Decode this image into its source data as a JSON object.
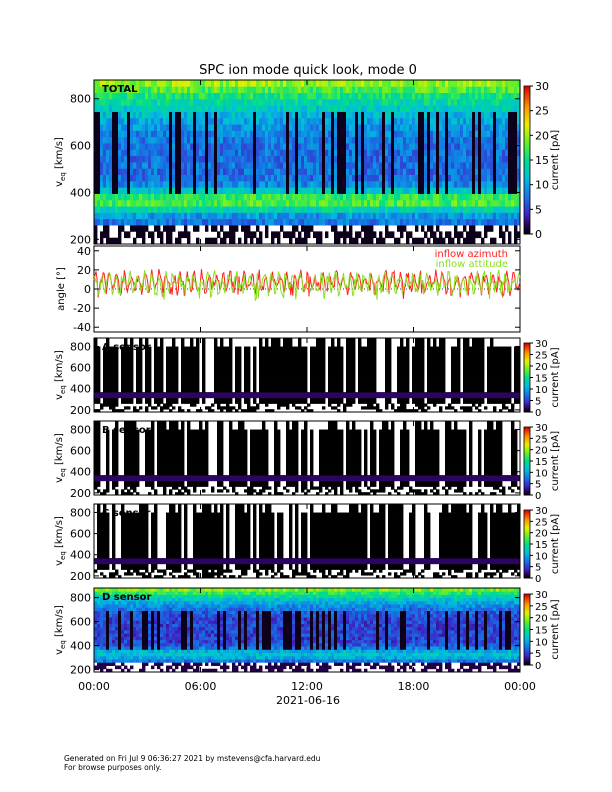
{
  "chart_data": {
    "type": "heatmap",
    "title": "SPC ion mode quick look, mode 0",
    "xlabel": "2021-06-16",
    "x_ticks": [
      "00:00",
      "06:00",
      "12:00",
      "18:00",
      "00:00"
    ],
    "x_range_hours": [
      0,
      24
    ],
    "panels": [
      {
        "kind": "spectrogram",
        "label": "TOTAL",
        "ylabel_main": "v",
        "ylabel_sub": "eq",
        "ylabel_unit": "[km/s]",
        "y_ticks": [
          200,
          400,
          600,
          800
        ],
        "ylim": [
          180,
          880
        ],
        "colorbar_label": "current [pA]",
        "colorbar_ticks": [
          0,
          5,
          10,
          15,
          20,
          25,
          30
        ],
        "colorbar_range": [
          0,
          30
        ],
        "bulk_speed_approx": 330,
        "variant": "full"
      },
      {
        "kind": "line",
        "ylabel": "angle [°]",
        "y_ticks": [
          -40,
          -20,
          0,
          20,
          40
        ],
        "ylim": [
          -45,
          45
        ],
        "series": [
          {
            "name": "inflow azimuth",
            "color": "#ff2020",
            "typical_range": [
              0,
              20
            ]
          },
          {
            "name": "inflow attitude",
            "color": "#88e020",
            "typical_range": [
              0,
              18
            ]
          }
        ]
      },
      {
        "kind": "spectrogram",
        "label": "A sensor",
        "ylabel_main": "v",
        "ylabel_sub": "eq",
        "ylabel_unit": "[km/s]",
        "y_ticks": [
          200,
          400,
          600,
          800
        ],
        "ylim": [
          180,
          880
        ],
        "colorbar_label": "current [pA]",
        "colorbar_ticks": [
          0,
          5,
          10,
          15,
          20,
          25,
          30
        ],
        "colorbar_range": [
          0,
          30
        ],
        "bulk_speed_approx": 330,
        "variant": "dark"
      },
      {
        "kind": "spectrogram",
        "label": "B sensor",
        "ylabel_main": "v",
        "ylabel_sub": "eq",
        "ylabel_unit": "[km/s]",
        "y_ticks": [
          200,
          400,
          600,
          800
        ],
        "ylim": [
          180,
          880
        ],
        "colorbar_label": "current [pA]",
        "colorbar_ticks": [
          0,
          5,
          10,
          15,
          20,
          25,
          30
        ],
        "colorbar_range": [
          0,
          30
        ],
        "bulk_speed_approx": 330,
        "variant": "dark"
      },
      {
        "kind": "spectrogram",
        "label": "C sensor",
        "ylabel_main": "v",
        "ylabel_sub": "eq",
        "ylabel_unit": "[km/s]",
        "y_ticks": [
          200,
          400,
          600,
          800
        ],
        "ylim": [
          180,
          880
        ],
        "colorbar_label": "current [pA]",
        "colorbar_ticks": [
          0,
          5,
          10,
          15,
          20,
          25,
          30
        ],
        "colorbar_range": [
          0,
          30
        ],
        "bulk_speed_approx": 330,
        "variant": "dark"
      },
      {
        "kind": "spectrogram",
        "label": "D sensor",
        "ylabel_main": "v",
        "ylabel_sub": "eq",
        "ylabel_unit": "[km/s]",
        "y_ticks": [
          200,
          400,
          600,
          800
        ],
        "ylim": [
          180,
          880
        ],
        "colorbar_label": "current [pA]",
        "colorbar_ticks": [
          0,
          5,
          10,
          15,
          20,
          25,
          30
        ],
        "colorbar_range": [
          0,
          30
        ],
        "bulk_speed_approx": 330,
        "variant": "bright"
      }
    ]
  },
  "footer": {
    "line1": "Generated on Fri Jul  9 06:36:27 2021 by mstevens@cfa.harvard.edu",
    "line2": "For browse purposes only."
  }
}
